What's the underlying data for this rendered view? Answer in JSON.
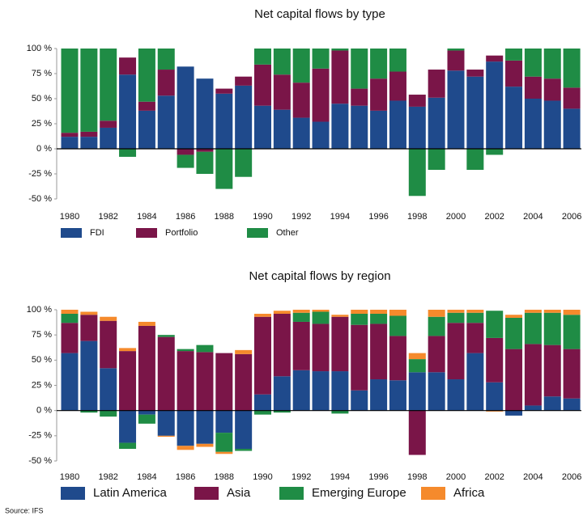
{
  "chart_data": [
    {
      "type": "bar",
      "stacked": true,
      "title": "Net capital flows by type",
      "categories": [
        "1980",
        null,
        "1982",
        null,
        "1984",
        null,
        "1986",
        null,
        "1988",
        null,
        "1990",
        null,
        "1992",
        null,
        "1994",
        null,
        "1996",
        null,
        "1998",
        null,
        "2000",
        null,
        "2002",
        null,
        "2004",
        null,
        "2006"
      ],
      "series": [
        {
          "name": "FDI",
          "color": "#1f4a8c",
          "values": [
            12,
            12,
            21,
            74,
            38,
            53,
            82,
            70,
            55,
            63,
            43,
            39,
            31,
            27,
            45,
            43,
            38,
            48,
            42,
            51,
            78,
            72,
            87,
            62,
            50,
            48,
            40
          ]
        },
        {
          "name": "Portfolio",
          "color": "#7a1548",
          "values": [
            4,
            5,
            7,
            17,
            9,
            26,
            -6,
            -3,
            5,
            9,
            41,
            35,
            35,
            53,
            53,
            17,
            32,
            29,
            12,
            28,
            20,
            7,
            6,
            26,
            22,
            22,
            21
          ]
        },
        {
          "name": "Other",
          "color": "#1f8c45",
          "values": [
            84,
            83,
            72,
            -8,
            53,
            21,
            -13,
            -22,
            -40,
            -28,
            16,
            26,
            34,
            20,
            2,
            40,
            30,
            23,
            -47,
            -21,
            2,
            -21,
            -6,
            12,
            28,
            30,
            39
          ]
        }
      ],
      "ylim": [
        -50,
        100
      ],
      "yticks": [
        {
          "value": -50,
          "label": "-50 %"
        },
        {
          "value": -25,
          "label": "-25 %"
        },
        {
          "value": 0,
          "label": "0 %"
        },
        {
          "value": 25,
          "label": "25 %"
        },
        {
          "value": 50,
          "label": "50 %"
        },
        {
          "value": 75,
          "label": "75 %"
        },
        {
          "value": 100,
          "label": "100 %"
        }
      ],
      "grid": false
    },
    {
      "type": "bar",
      "stacked": true,
      "title": "Net capital flows by region",
      "categories": [
        "1980",
        null,
        "1982",
        null,
        "1984",
        null,
        "1986",
        null,
        "1988",
        null,
        "1990",
        null,
        "1992",
        null,
        "1994",
        null,
        "1996",
        null,
        "1998",
        null,
        "2000",
        null,
        "2002",
        null,
        "2004",
        null,
        "2006"
      ],
      "series": [
        {
          "name": "Latin America",
          "color": "#1f4a8c",
          "values": [
            57,
            69,
            42,
            -32,
            -4,
            -25,
            -35,
            -33,
            -22,
            -38,
            16,
            34,
            40,
            39,
            39,
            20,
            31,
            30,
            38,
            38,
            31,
            57,
            28,
            -5,
            5,
            14,
            12
          ]
        },
        {
          "name": "Asia",
          "color": "#7a1548",
          "values": [
            30,
            26,
            47,
            59,
            84,
            73,
            59,
            58,
            57,
            56,
            77,
            62,
            48,
            47,
            54,
            65,
            55,
            44,
            -44,
            36,
            56,
            30,
            44,
            61,
            61,
            51,
            49
          ]
        },
        {
          "name": "Emerging Europe",
          "color": "#1f8c45",
          "values": [
            9,
            -2,
            -6,
            -6,
            -9,
            2,
            2,
            7,
            -19,
            -2,
            -4,
            -2,
            9,
            12,
            -3,
            11,
            10,
            20,
            13,
            19,
            10,
            10,
            27,
            31,
            31,
            32,
            34
          ]
        },
        {
          "name": "Africa",
          "color": "#f58a2c",
          "values": [
            4,
            3,
            4,
            3,
            4,
            -1,
            -4,
            -3,
            -2,
            4,
            3,
            3,
            3,
            2,
            2,
            4,
            4,
            6,
            6,
            7,
            3,
            3,
            -1,
            3,
            3,
            3,
            5
          ]
        }
      ],
      "ylim": [
        -50,
        100
      ],
      "yticks": [
        {
          "value": -50,
          "label": "-50 %"
        },
        {
          "value": -25,
          "label": "-25 %"
        },
        {
          "value": 0,
          "label": "0 %"
        },
        {
          "value": 25,
          "label": "25 %"
        },
        {
          "value": 50,
          "label": "50 %"
        },
        {
          "value": 75,
          "label": "75 %"
        },
        {
          "value": 100,
          "label": "100 %"
        }
      ],
      "grid": false
    }
  ],
  "source": "Source: IFS"
}
